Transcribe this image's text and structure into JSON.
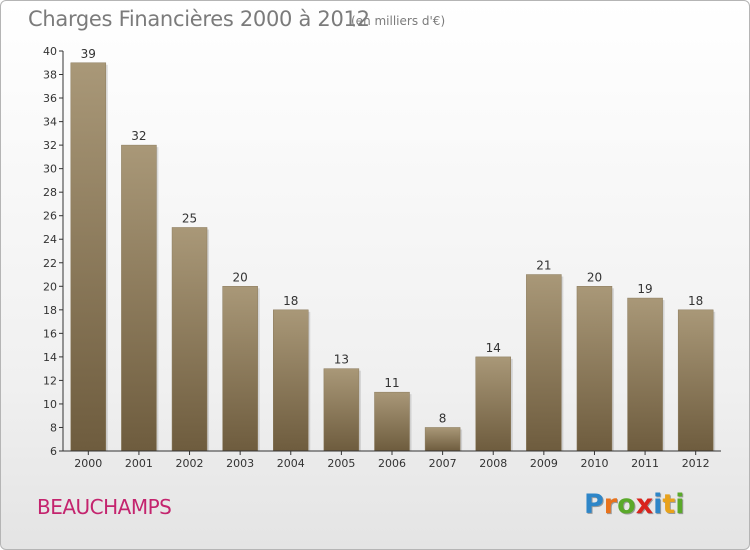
{
  "title": "Charges Financières 2000 à 2012",
  "subtitle": "(en milliers d'€)",
  "place": "BEAUCHAMPS",
  "logo": {
    "text": "Proxiti",
    "letters": [
      {
        "ch": "P",
        "color": "#2e86c8"
      },
      {
        "ch": "r",
        "color": "#e8721c"
      },
      {
        "ch": "o",
        "color": "#5aa92a"
      },
      {
        "ch": "x",
        "color": "#d9241c"
      },
      {
        "ch": "i",
        "color": "#2e86c8"
      },
      {
        "ch": "t",
        "color": "#e8a21c"
      },
      {
        "ch": "i",
        "color": "#5aa92a"
      }
    ]
  },
  "colors": {
    "bar_top": "#a99878",
    "bar_bottom": "#6e5c3e",
    "axis": "#333333",
    "grid": "#d0d0d0",
    "text": "#333333"
  },
  "chart_data": {
    "type": "bar",
    "categories": [
      "2000",
      "2001",
      "2002",
      "2003",
      "2004",
      "2005",
      "2006",
      "2007",
      "2008",
      "2009",
      "2010",
      "2011",
      "2012"
    ],
    "values": [
      39,
      32,
      25,
      20,
      18,
      13,
      11,
      8,
      14,
      21,
      20,
      19,
      18
    ],
    "data_labels": [
      "39",
      "32",
      "25",
      "20",
      "18",
      "13",
      "11",
      "8",
      "14",
      "21",
      "20",
      "19",
      "18"
    ],
    "ylim": [
      6,
      40
    ],
    "yticks": [
      "6",
      "8",
      "10",
      "12",
      "14",
      "16",
      "18",
      "20",
      "22",
      "24",
      "26",
      "28",
      "30",
      "32",
      "34",
      "36",
      "38",
      "40"
    ],
    "grid": false,
    "title": "Charges Financières 2000 à 2012",
    "xlabel": "",
    "ylabel": ""
  }
}
